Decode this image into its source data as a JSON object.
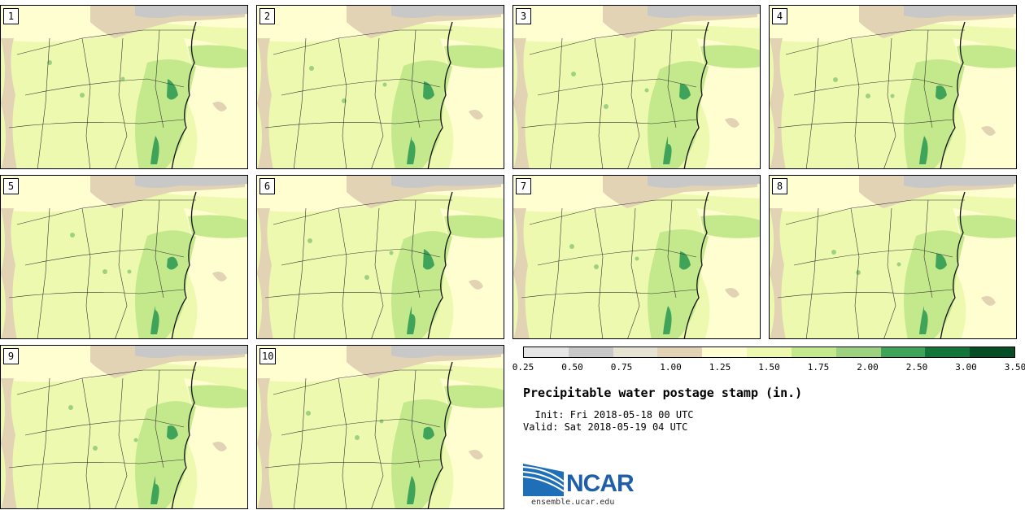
{
  "panels": [
    {
      "label": "1"
    },
    {
      "label": "2"
    },
    {
      "label": "3"
    },
    {
      "label": "4"
    },
    {
      "label": "5"
    },
    {
      "label": "6"
    },
    {
      "label": "7"
    },
    {
      "label": "8"
    },
    {
      "label": "9"
    },
    {
      "label": "10"
    }
  ],
  "legend": {
    "ticks": [
      "0.25",
      "0.50",
      "0.75",
      "1.00",
      "1.25",
      "1.50",
      "1.75",
      "2.00",
      "2.50",
      "3.00",
      "3.50"
    ],
    "colors": [
      "#e6e6e6",
      "#c8c8c8",
      "#e6e3d2",
      "#e2d3b4",
      "#fffed0",
      "#eef9b0",
      "#c4e88c",
      "#9cd180",
      "#3fa45a",
      "#12763a",
      "#054d24",
      "#1428a0"
    ]
  },
  "title": "Precipitable water postage stamp (in.)",
  "init": "  Init: Fri 2018-05-18 00 UTC",
  "valid": "Valid: Sat 2018-05-19 04 UTC",
  "logo": {
    "text": "NCAR",
    "url": "ensemble.ucar.edu"
  }
}
